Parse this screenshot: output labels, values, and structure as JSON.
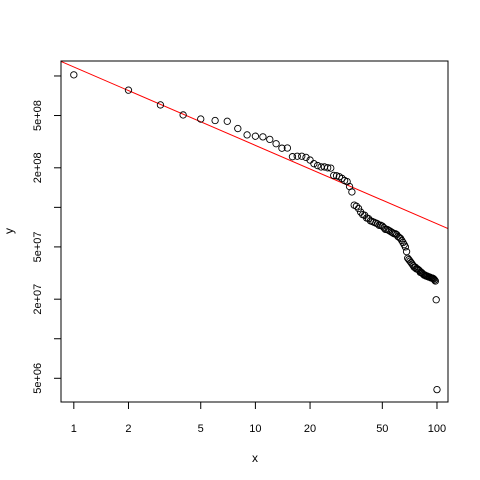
{
  "chart_data": {
    "type": "scatter",
    "title": "",
    "xlabel": "x",
    "ylabel": "y",
    "x_scale": "log",
    "y_scale": "log",
    "xlim": [
      0.85,
      115
    ],
    "ylim": [
      3300000,
      1300000000
    ],
    "x_ticks": [
      {
        "value": 1,
        "label": "1"
      },
      {
        "value": 2,
        "label": "2"
      },
      {
        "value": 5,
        "label": "5"
      },
      {
        "value": 10,
        "label": "10"
      },
      {
        "value": 20,
        "label": "20"
      },
      {
        "value": 50,
        "label": "50"
      },
      {
        "value": 100,
        "label": "100"
      }
    ],
    "y_ticks": [
      {
        "value": 5000000,
        "label": "5e+06"
      },
      {
        "value": 10000000,
        "label": ""
      },
      {
        "value": 20000000,
        "label": "2e+07"
      },
      {
        "value": 50000000,
        "label": "5e+07"
      },
      {
        "value": 100000000,
        "label": ""
      },
      {
        "value": 200000000,
        "label": "2e+08"
      },
      {
        "value": 500000000,
        "label": "5e+08"
      },
      {
        "value": 1000000000,
        "label": ""
      }
    ],
    "series": [
      {
        "marker": "open-circle",
        "color": "#000000",
        "points": [
          [
            1,
            1020000000
          ],
          [
            2,
            780000000
          ],
          [
            3,
            602000000
          ],
          [
            4,
            505000000
          ],
          [
            5,
            470000000
          ],
          [
            6,
            458000000
          ],
          [
            7,
            452000000
          ],
          [
            8,
            398000000
          ],
          [
            9,
            356000000
          ],
          [
            10,
            348000000
          ],
          [
            11,
            344000000
          ],
          [
            12,
            329000000
          ],
          [
            13,
            305000000
          ],
          [
            14,
            282000000
          ],
          [
            15,
            283000000
          ],
          [
            16,
            243000000
          ],
          [
            17,
            245000000
          ],
          [
            18,
            245000000
          ],
          [
            19,
            240000000
          ],
          [
            20,
            229000000
          ],
          [
            21,
            215000000
          ],
          [
            22,
            208000000
          ],
          [
            23,
            203000000
          ],
          [
            24,
            203000000
          ],
          [
            25,
            200000000
          ],
          [
            26,
            199000000
          ],
          [
            27,
            175000000
          ],
          [
            28,
            174000000
          ],
          [
            29,
            171000000
          ],
          [
            30,
            166000000
          ],
          [
            31,
            160000000
          ],
          [
            32,
            157000000
          ],
          [
            33,
            144000000
          ],
          [
            34,
            131000000
          ],
          [
            35,
            104000000
          ],
          [
            36,
            102000000
          ],
          [
            37,
            98000000
          ],
          [
            38,
            92000000
          ],
          [
            39,
            88000000
          ],
          [
            40,
            87000000
          ],
          [
            41,
            83000000
          ],
          [
            42,
            82000000
          ],
          [
            43,
            79000000
          ],
          [
            44,
            78000000
          ],
          [
            45,
            77000000
          ],
          [
            46,
            76000000
          ],
          [
            47,
            75000000
          ],
          [
            48,
            73000000
          ],
          [
            49,
            73000000
          ],
          [
            50,
            72000000
          ],
          [
            51,
            70000000
          ],
          [
            52,
            68000000
          ],
          [
            53,
            68000000
          ],
          [
            54,
            67000000
          ],
          [
            55,
            66000000
          ],
          [
            56,
            65000000
          ],
          [
            57,
            64000000
          ],
          [
            58,
            63000000
          ],
          [
            59,
            63000000
          ],
          [
            60,
            62000000
          ],
          [
            61,
            60000000
          ],
          [
            62,
            59000000
          ],
          [
            63,
            58000000
          ],
          [
            64,
            56000000
          ],
          [
            65,
            54000000
          ],
          [
            66,
            52000000
          ],
          [
            67,
            50000000
          ],
          [
            68,
            46000000
          ],
          [
            69,
            41000000
          ],
          [
            70,
            40000000
          ],
          [
            71,
            39000000
          ],
          [
            72,
            38000000
          ],
          [
            73,
            37000000
          ],
          [
            74,
            36000000
          ],
          [
            75,
            35000000
          ],
          [
            76,
            35000000
          ],
          [
            77,
            34000000
          ],
          [
            78,
            34000000
          ],
          [
            79,
            33500000
          ],
          [
            80,
            33000000
          ],
          [
            81,
            32000000
          ],
          [
            82,
            32000000
          ],
          [
            83,
            31500000
          ],
          [
            84,
            31000000
          ],
          [
            85,
            30500000
          ],
          [
            86,
            30500000
          ],
          [
            87,
            30000000
          ],
          [
            88,
            30000000
          ],
          [
            89,
            29800000
          ],
          [
            90,
            29500000
          ],
          [
            91,
            29500000
          ],
          [
            92,
            29200000
          ],
          [
            93,
            29000000
          ],
          [
            94,
            29000000
          ],
          [
            95,
            28800000
          ],
          [
            96,
            28500000
          ],
          [
            97,
            28000000
          ],
          [
            98,
            27500000
          ],
          [
            99,
            19800000
          ],
          [
            100,
            4100000
          ]
        ]
      }
    ],
    "fit_line": {
      "color": "#ff0000",
      "points": [
        [
          0.85,
          1290000000
        ],
        [
          115,
          69000000
        ]
      ]
    },
    "grid": false,
    "legend": "none"
  }
}
